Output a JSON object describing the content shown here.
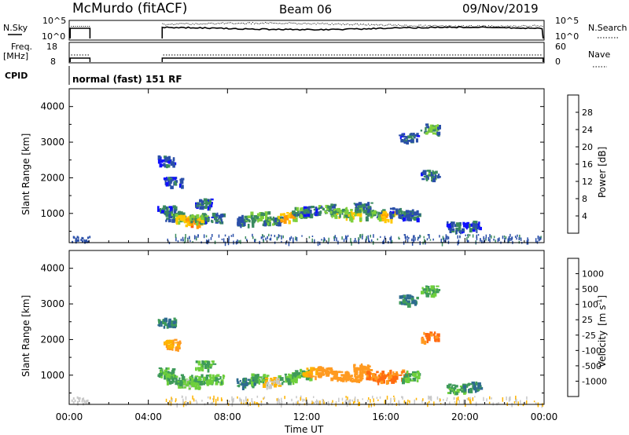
{
  "header": {
    "title": "McMurdo (fitACF)",
    "beam": "Beam 06",
    "date": "09/Nov/2019"
  },
  "top_panel": {
    "left_label": "N.Sky",
    "right_label": "N.Search",
    "left_ticks": [
      "10^5",
      "10^0"
    ],
    "right_ticks": [
      "10^5",
      "10^0"
    ]
  },
  "freq_panel": {
    "left_label_1": "Freq.",
    "left_label_2": "[MHz]",
    "right_label": "Nave",
    "left_ticks": [
      "18",
      "8"
    ],
    "right_ticks": [
      "60",
      "0"
    ]
  },
  "cpid": {
    "label": "CPID",
    "value": "normal (fast) 151 RF"
  },
  "colorbar_power": {
    "title": "Power [dB]",
    "ticks": [
      "28",
      "24",
      "20",
      "16",
      "12",
      "8",
      "4"
    ],
    "colors": [
      "#e01010",
      "#ff5a10",
      "#ff9a00",
      "#ffc800",
      "#7fcf3c",
      "#3b8a5f",
      "#2a4fa8",
      "#1010ff"
    ]
  },
  "colorbar_velocity": {
    "title": "Velocity",
    "unit": "[m s",
    "unit_sup": "-1",
    "unit_end": "]",
    "ticks": [
      "1000",
      "500",
      "100",
      "25",
      "-25",
      "-100",
      "-500",
      "-1000"
    ],
    "colors": [
      "#1a3fb0",
      "#2e6b8f",
      "#3e9a5a",
      "#6ecf3c",
      "#c8c8c8",
      "#ffb400",
      "#ff9a20",
      "#ff6a10",
      "#e01010"
    ]
  },
  "chart_data": [
    {
      "type": "heatmap",
      "panel": "power",
      "xlabel": "",
      "ylabel": "Slant Range [km]",
      "xlim": [
        0,
        24
      ],
      "ylim": [
        180,
        4500
      ],
      "yticks": [
        "4000",
        "3000",
        "2000",
        "1000"
      ],
      "xtick_hours": [
        0,
        4,
        8,
        12,
        16,
        20,
        24
      ],
      "echo_blobs": [
        {
          "t": 4.9,
          "r": 1100,
          "v": 8
        },
        {
          "t": 5.3,
          "r": 950,
          "v": 10
        },
        {
          "t": 5.8,
          "r": 860,
          "v": 18
        },
        {
          "t": 6.2,
          "r": 780,
          "v": 24
        },
        {
          "t": 6.5,
          "r": 900,
          "v": 14
        },
        {
          "t": 7.3,
          "r": 900,
          "v": 8
        },
        {
          "t": 8.9,
          "r": 830,
          "v": 10
        },
        {
          "t": 9.6,
          "r": 930,
          "v": 14
        },
        {
          "t": 10.2,
          "r": 830,
          "v": 12
        },
        {
          "t": 11.0,
          "r": 920,
          "v": 20
        },
        {
          "t": 11.7,
          "r": 1050,
          "v": 10
        },
        {
          "t": 12.2,
          "r": 1100,
          "v": 8
        },
        {
          "t": 13.0,
          "r": 1150,
          "v": 12
        },
        {
          "t": 13.6,
          "r": 1050,
          "v": 14
        },
        {
          "t": 14.3,
          "r": 1000,
          "v": 16
        },
        {
          "t": 14.8,
          "r": 1200,
          "v": 10
        },
        {
          "t": 15.4,
          "r": 1000,
          "v": 12
        },
        {
          "t": 16.0,
          "r": 950,
          "v": 20
        },
        {
          "t": 16.6,
          "r": 1050,
          "v": 8
        },
        {
          "t": 17.2,
          "r": 1000,
          "v": 8
        },
        {
          "t": 18.2,
          "r": 2100,
          "v": 10
        },
        {
          "t": 18.2,
          "r": 3400,
          "v": 12
        },
        {
          "t": 17.1,
          "r": 3150,
          "v": 8
        },
        {
          "t": 19.5,
          "r": 650,
          "v": 8
        },
        {
          "t": 20.3,
          "r": 700,
          "v": 6
        },
        {
          "t": 4.9,
          "r": 2500,
          "v": 6
        },
        {
          "t": 5.2,
          "r": 1900,
          "v": 6
        },
        {
          "t": 6.8,
          "r": 1300,
          "v": 8
        }
      ]
    },
    {
      "type": "heatmap",
      "panel": "velocity",
      "xlabel": "Time UT",
      "ylabel": "Slant Range [km]",
      "xlim": [
        0,
        24
      ],
      "ylim": [
        180,
        4500
      ],
      "yticks": [
        "4000",
        "3000",
        "2000",
        "1000"
      ],
      "xtick_labels": [
        "00:00",
        "04:00",
        "08:00",
        "12:00",
        "16:00",
        "20:00",
        "00:00"
      ],
      "xtick_hours": [
        0,
        4,
        8,
        12,
        16,
        20,
        24
      ],
      "echo_blobs": [
        {
          "t": 4.9,
          "r": 1100,
          "v": 100
        },
        {
          "t": 5.3,
          "r": 950,
          "v": 100
        },
        {
          "t": 5.8,
          "r": 860,
          "v": 100
        },
        {
          "t": 6.2,
          "r": 780,
          "v": 25
        },
        {
          "t": 6.5,
          "r": 900,
          "v": 100
        },
        {
          "t": 7.3,
          "r": 900,
          "v": 100
        },
        {
          "t": 8.9,
          "r": 830,
          "v": 500
        },
        {
          "t": 9.6,
          "r": 930,
          "v": 100
        },
        {
          "t": 10.2,
          "r": 830,
          "v": -25
        },
        {
          "t": 11.0,
          "r": 920,
          "v": 100
        },
        {
          "t": 11.7,
          "r": 1050,
          "v": 100
        },
        {
          "t": 12.2,
          "r": 1100,
          "v": -100
        },
        {
          "t": 13.0,
          "r": 1150,
          "v": -300
        },
        {
          "t": 13.6,
          "r": 1050,
          "v": -300
        },
        {
          "t": 14.3,
          "r": 1000,
          "v": -300
        },
        {
          "t": 14.8,
          "r": 1200,
          "v": -300
        },
        {
          "t": 15.4,
          "r": 1000,
          "v": -500
        },
        {
          "t": 16.0,
          "r": 950,
          "v": -500
        },
        {
          "t": 16.6,
          "r": 1050,
          "v": -500
        },
        {
          "t": 17.2,
          "r": 1000,
          "v": 100
        },
        {
          "t": 18.2,
          "r": 2100,
          "v": -600
        },
        {
          "t": 18.2,
          "r": 3400,
          "v": 100
        },
        {
          "t": 17.1,
          "r": 3150,
          "v": 500
        },
        {
          "t": 19.5,
          "r": 650,
          "v": 100
        },
        {
          "t": 20.3,
          "r": 700,
          "v": 500
        },
        {
          "t": 4.9,
          "r": 2500,
          "v": 500
        },
        {
          "t": 5.2,
          "r": 1900,
          "v": -100
        },
        {
          "t": 6.8,
          "r": 1300,
          "v": 100
        }
      ]
    }
  ]
}
